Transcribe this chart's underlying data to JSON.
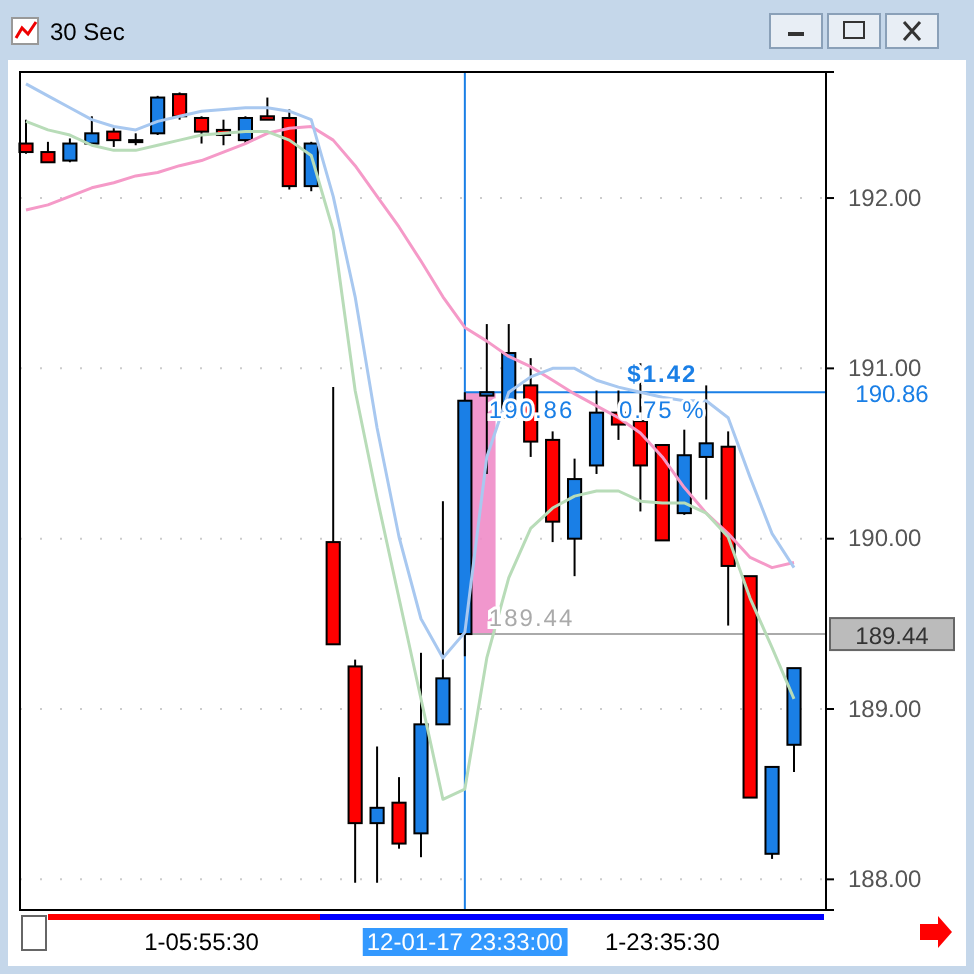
{
  "chart_data": {
    "type": "candlestick",
    "title": "30 Sec",
    "categories": [
      null,
      null,
      null,
      null,
      null,
      null,
      null,
      null,
      "1-05:55:30",
      null,
      null,
      null,
      null,
      null,
      null,
      null,
      null,
      null,
      null,
      null,
      "12-01-17 23:33:00",
      null,
      null,
      null,
      null,
      null,
      null,
      null,
      null,
      "1-23:35:30",
      null,
      null,
      null,
      null,
      null,
      null
    ],
    "ohlc": [
      [
        192.32,
        192.46,
        192.26,
        192.27
      ],
      [
        192.27,
        192.33,
        192.21,
        192.21
      ],
      [
        192.22,
        192.35,
        192.21,
        192.32
      ],
      [
        192.32,
        192.48,
        192.32,
        192.38
      ],
      [
        192.39,
        192.41,
        192.3,
        192.34
      ],
      [
        192.34,
        192.38,
        192.31,
        192.34
      ],
      [
        192.38,
        192.6,
        192.37,
        192.59
      ],
      [
        192.61,
        192.62,
        192.46,
        192.48
      ],
      [
        192.47,
        192.48,
        192.32,
        192.39
      ],
      [
        192.4,
        192.46,
        192.31,
        192.37
      ],
      [
        192.34,
        192.48,
        192.32,
        192.47
      ],
      [
        192.48,
        192.59,
        192.46,
        192.46
      ],
      [
        192.47,
        192.52,
        192.05,
        192.07
      ],
      [
        192.07,
        192.33,
        192.04,
        192.32
      ],
      [
        189.98,
        190.89,
        189.38,
        189.38
      ],
      [
        189.25,
        189.29,
        187.98,
        188.33
      ],
      [
        188.33,
        188.78,
        187.98,
        188.42
      ],
      [
        188.45,
        188.6,
        188.18,
        188.21
      ],
      [
        188.27,
        189.33,
        188.13,
        188.91
      ],
      [
        188.91,
        190.22,
        188.91,
        189.18
      ],
      [
        189.44,
        190.86,
        189.31,
        190.81
      ],
      [
        190.84,
        191.26,
        190.38,
        190.86
      ],
      [
        190.71,
        191.26,
        190.7,
        191.09
      ],
      [
        190.9,
        191.06,
        190.48,
        190.57
      ],
      [
        190.58,
        190.63,
        189.98,
        190.1
      ],
      [
        190.0,
        190.47,
        189.78,
        190.35
      ],
      [
        190.43,
        190.87,
        190.38,
        190.74
      ],
      [
        190.74,
        190.87,
        190.58,
        190.67
      ],
      [
        190.69,
        191.03,
        190.16,
        190.43
      ],
      [
        190.55,
        190.55,
        189.99,
        189.99
      ],
      [
        190.15,
        190.64,
        190.14,
        190.49
      ],
      [
        190.48,
        190.9,
        190.23,
        190.56
      ],
      [
        190.54,
        190.63,
        189.49,
        189.84
      ],
      [
        189.78,
        189.78,
        188.48,
        188.48
      ],
      [
        188.15,
        188.66,
        188.12,
        188.66
      ],
      [
        188.79,
        189.24,
        188.63,
        189.24
      ]
    ],
    "colors": [
      "#ff0000",
      "#ff0000",
      "#1a7fe6",
      "#1a7fe6",
      "#ff0000",
      "#000000",
      "#1a7fe6",
      "#ff0000",
      "#ff0000",
      "#ff0000",
      "#1a7fe6",
      "#ff0000",
      "#ff0000",
      "#1a7fe6",
      "#ff0000",
      "#ff0000",
      "#1a7fe6",
      "#ff0000",
      "#1a7fe6",
      "#1a7fe6",
      "#1a7fe6",
      "#1a7fe6",
      "#1a7fe6",
      "#ff0000",
      "#ff0000",
      "#1a7fe6",
      "#1a7fe6",
      "#ff0000",
      "#ff0000",
      "#ff0000",
      "#1a7fe6",
      "#1a7fe6",
      "#ff0000",
      "#ff0000",
      "#1a7fe6",
      "#1a7fe6"
    ],
    "series": [
      {
        "type": "line",
        "color": "#f59ac8",
        "values": [
          191.93,
          191.96,
          192.01,
          192.06,
          192.09,
          192.13,
          192.15,
          192.19,
          192.22,
          192.27,
          192.32,
          192.38,
          192.41,
          192.42,
          192.34,
          192.19,
          192.01,
          191.83,
          191.63,
          191.42,
          191.24,
          191.16,
          191.07,
          191.01,
          190.93,
          190.85,
          190.78,
          190.71,
          190.62,
          190.48,
          190.3,
          190.15,
          190.03,
          189.89,
          189.83,
          189.86
        ]
      },
      {
        "type": "line",
        "color": "#a8c8f0",
        "values": [
          192.67,
          192.6,
          192.53,
          192.46,
          192.42,
          192.4,
          192.45,
          192.48,
          192.51,
          192.52,
          192.53,
          192.53,
          192.51,
          192.46,
          192.01,
          191.42,
          190.65,
          190.01,
          189.53,
          189.3,
          189.45,
          190.48,
          190.86,
          190.95,
          191.0,
          191.0,
          190.93,
          190.89,
          190.86,
          190.83,
          190.81,
          190.81,
          190.71,
          190.36,
          190.03,
          189.83
        ]
      },
      {
        "type": "line",
        "color": "#b8dcb8",
        "values": [
          192.45,
          192.4,
          192.37,
          192.31,
          192.28,
          192.28,
          192.31,
          192.34,
          192.37,
          192.38,
          192.39,
          192.39,
          192.34,
          192.25,
          191.81,
          190.87,
          190.24,
          189.65,
          189.06,
          188.47,
          188.53,
          189.3,
          189.77,
          190.06,
          190.18,
          190.25,
          190.28,
          190.28,
          190.22,
          190.21,
          190.21,
          190.15,
          190.01,
          189.65,
          189.36,
          189.06
        ]
      }
    ],
    "ylim": [
      187.82,
      192.74
    ],
    "yticks": [
      {
        "value": 188,
        "label": "188.00"
      },
      {
        "value": 189,
        "label": "189.00"
      },
      {
        "value": 190,
        "label": "190.00"
      },
      {
        "value": 191,
        "label": "191.00"
      },
      {
        "value": 192,
        "label": "192.00"
      }
    ],
    "grid": "y",
    "marker": "none",
    "line_style": "solid",
    "ref_lines": [
      {
        "axis": "x",
        "value": "12-01-17 23:33:00",
        "color": "#1a7fe6"
      },
      {
        "axis": "y",
        "value": 190.86,
        "label": "190.86",
        "color": "#1a7fe6"
      },
      {
        "axis": "y",
        "value": 189.44,
        "label": "189.44",
        "color": "#aaaaaa"
      }
    ],
    "annotations": [
      "$1.42",
      "0.75 %"
    ]
  }
}
